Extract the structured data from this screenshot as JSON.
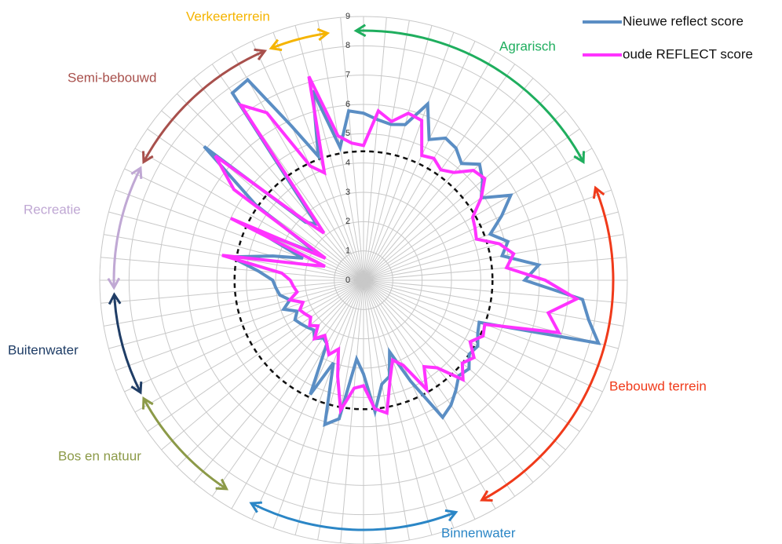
{
  "chart_data": {
    "type": "radar",
    "rlim": [
      0,
      9
    ],
    "rticks": [
      0,
      1,
      2,
      3,
      4,
      5,
      6,
      7,
      8,
      9
    ],
    "grid": true,
    "reference_circle": 4.4,
    "series": [
      {
        "name": "Nieuwe reflect score",
        "color": "#5b8ec4",
        "values": [
          5.7,
          5.5,
          5.4,
          5.5,
          6.4,
          5.3,
          5.6,
          5.5,
          5.2,
          5.6,
          5.3,
          4.9,
          5.8,
          5.2,
          4.6,
          5.1,
          4.8,
          6.0,
          5.5,
          7.5,
          7.8,
          8.3,
          4.2,
          4.3,
          4.5,
          4.4,
          4.7,
          4.6,
          4.9,
          5.2,
          5.4,
          3.8,
          2.6,
          3.4,
          3.6,
          4.5,
          3.2,
          2.7,
          4.8,
          5.1,
          3.0,
          4.3,
          2.5,
          2.4,
          2.6,
          2.4,
          2.5,
          2.6,
          2.7,
          2.5,
          2.9,
          2.6,
          2.9,
          3.0,
          3.1,
          3.6,
          4.6,
          3.2,
          2.2,
          4.0,
          1.8,
          4.5,
          7.1,
          2.8,
          2.5,
          7.8,
          7.9,
          5.8,
          4.5,
          6.7,
          4.6,
          5.8
        ]
      },
      {
        "name": "oude REFLECT score",
        "color": "#ff33ff",
        "values": [
          4.6,
          5.8,
          5.5,
          5.9,
          5.8,
          4.7,
          4.8,
          4.6,
          4.8,
          5.3,
          5.4,
          4.9,
          4.3,
          4.2,
          4.1,
          4.8,
          5.2,
          4.9,
          6.2,
          7.3,
          6.4,
          6.9,
          4.4,
          4.5,
          4.2,
          4.6,
          4.4,
          4.8,
          3.9,
          3.6,
          4.3,
          3.2,
          2.9,
          3.5,
          4.6,
          4.4,
          3.6,
          3.7,
          4.5,
          3.4,
          2.5,
          2.8,
          2.5,
          2.3,
          2.6,
          2.2,
          2.4,
          2.2,
          2.3,
          2.4,
          2.2,
          2.6,
          2.3,
          2.4,
          2.5,
          2.8,
          4.9,
          2.1,
          1.4,
          5.0,
          1.5,
          5.4,
          6.6,
          3.0,
          2.1,
          7.3,
          6.6,
          4.3,
          3.9,
          7.2,
          5.0,
          4.7
        ]
      }
    ],
    "groups": [
      {
        "name": "Verkeerterrein",
        "color": "#f5b400",
        "start": 68,
        "end": 70
      },
      {
        "name": "Agrarisch",
        "color": "#1fae5e",
        "start": 0,
        "end": 12
      },
      {
        "name": "Bebouwd terrein",
        "color": "#f03a1a",
        "start": 14,
        "end": 30
      },
      {
        "name": "Binnenwater",
        "color": "#2b86c6",
        "start": 32,
        "end": 41
      },
      {
        "name": "Bos en natuur",
        "color": "#8c9a48",
        "start": 43,
        "end": 48
      },
      {
        "name": "Buitenwater",
        "color": "#1f3d66",
        "start": 49,
        "end": 53
      },
      {
        "name": "Recreatie",
        "color": "#c0a8d4",
        "start": 54,
        "end": 59
      },
      {
        "name": "Semi-bebouwd",
        "color": "#a8504c",
        "start": 60,
        "end": 67
      }
    ]
  }
}
